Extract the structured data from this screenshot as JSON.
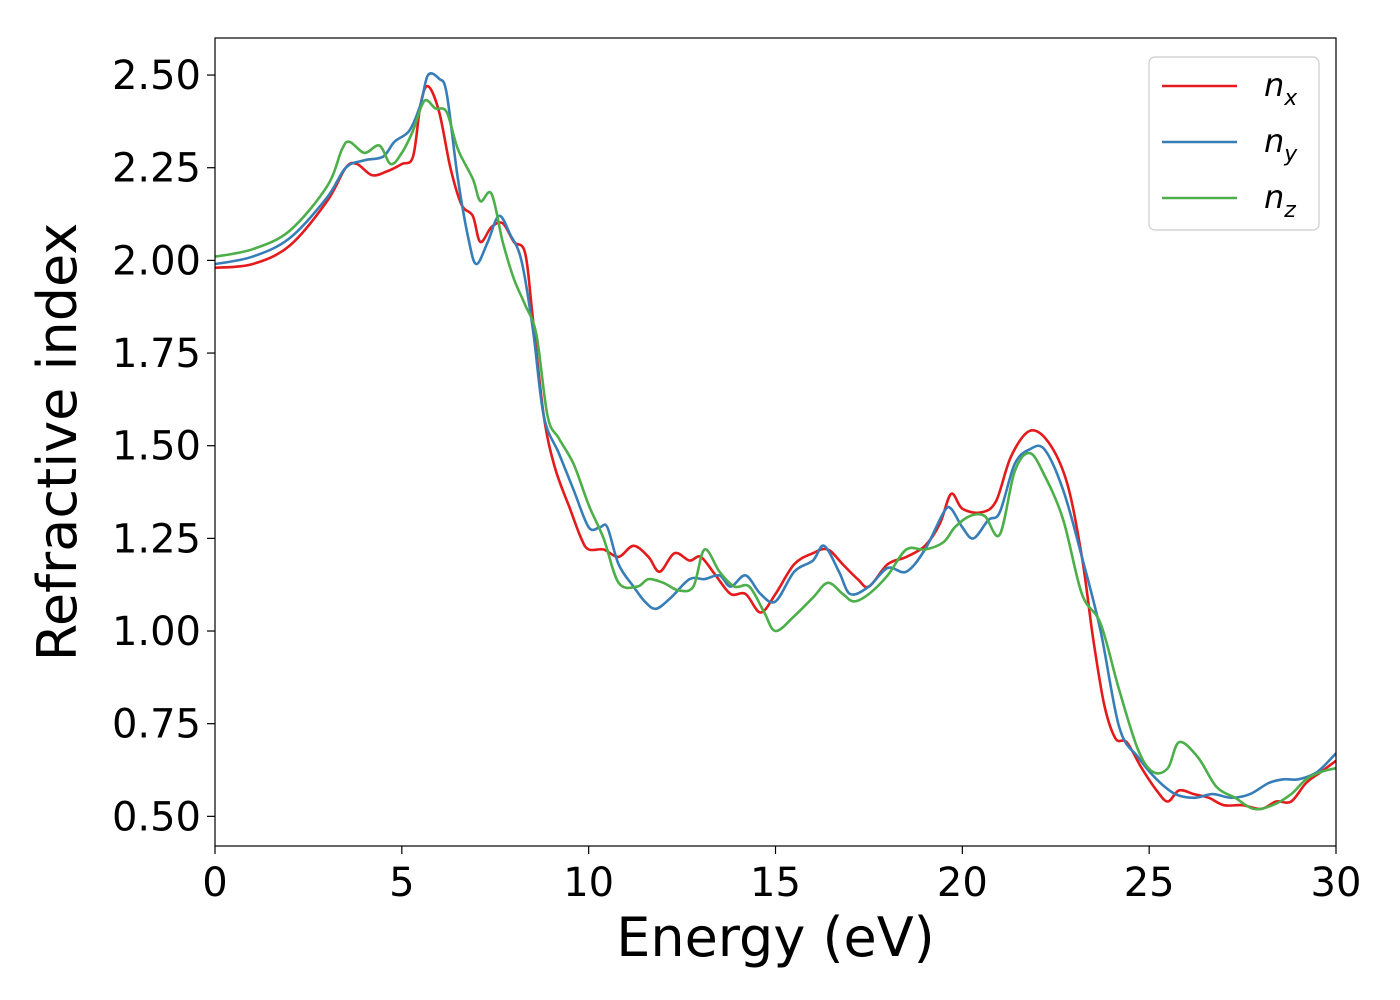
{
  "chart_data": {
    "type": "line",
    "title": "",
    "xlabel": "Energy (eV)",
    "ylabel": "Refractive index",
    "xlim": [
      0,
      30
    ],
    "ylim": [
      0.42,
      2.6
    ],
    "xticks": [
      0,
      5,
      10,
      15,
      20,
      25,
      30
    ],
    "xtick_labels": [
      "0",
      "5",
      "10",
      "15",
      "20",
      "25",
      "30"
    ],
    "yticks": [
      0.5,
      0.75,
      1.0,
      1.25,
      1.5,
      1.75,
      2.0,
      2.25,
      2.5
    ],
    "ytick_labels": [
      "0.50",
      "0.75",
      "1.00",
      "1.25",
      "1.50",
      "1.75",
      "2.00",
      "2.25",
      "2.50"
    ],
    "grid": false,
    "legend_position": "top-right",
    "series": [
      {
        "name": "n_x",
        "legend_base": "n",
        "legend_sub": "x",
        "color": "#e41a1c",
        "points": [
          [
            0,
            1.98
          ],
          [
            1,
            1.99
          ],
          [
            2,
            2.04
          ],
          [
            3,
            2.16
          ],
          [
            3.5,
            2.25
          ],
          [
            3.8,
            2.26
          ],
          [
            4.2,
            2.23
          ],
          [
            4.6,
            2.24
          ],
          [
            5.0,
            2.26
          ],
          [
            5.3,
            2.28
          ],
          [
            5.5,
            2.42
          ],
          [
            5.7,
            2.47
          ],
          [
            6.0,
            2.4
          ],
          [
            6.3,
            2.25
          ],
          [
            6.6,
            2.15
          ],
          [
            6.9,
            2.12
          ],
          [
            7.1,
            2.05
          ],
          [
            7.4,
            2.09
          ],
          [
            7.7,
            2.1
          ],
          [
            8.0,
            2.05
          ],
          [
            8.3,
            2.02
          ],
          [
            8.5,
            1.85
          ],
          [
            8.8,
            1.58
          ],
          [
            9.1,
            1.44
          ],
          [
            9.5,
            1.33
          ],
          [
            9.8,
            1.25
          ],
          [
            10.0,
            1.22
          ],
          [
            10.4,
            1.22
          ],
          [
            10.8,
            1.2
          ],
          [
            11.2,
            1.23
          ],
          [
            11.6,
            1.2
          ],
          [
            11.9,
            1.16
          ],
          [
            12.3,
            1.21
          ],
          [
            12.7,
            1.19
          ],
          [
            13.0,
            1.2
          ],
          [
            13.4,
            1.15
          ],
          [
            13.8,
            1.1
          ],
          [
            14.2,
            1.1
          ],
          [
            14.6,
            1.05
          ],
          [
            15.0,
            1.1
          ],
          [
            15.5,
            1.18
          ],
          [
            16.0,
            1.21
          ],
          [
            16.4,
            1.22
          ],
          [
            16.8,
            1.18
          ],
          [
            17.2,
            1.14
          ],
          [
            17.5,
            1.12
          ],
          [
            18.0,
            1.18
          ],
          [
            18.5,
            1.2
          ],
          [
            19.0,
            1.23
          ],
          [
            19.4,
            1.29
          ],
          [
            19.7,
            1.37
          ],
          [
            20.0,
            1.33
          ],
          [
            20.5,
            1.32
          ],
          [
            20.9,
            1.35
          ],
          [
            21.3,
            1.47
          ],
          [
            21.8,
            1.54
          ],
          [
            22.3,
            1.51
          ],
          [
            22.8,
            1.4
          ],
          [
            23.2,
            1.2
          ],
          [
            23.5,
            0.98
          ],
          [
            23.8,
            0.8
          ],
          [
            24.1,
            0.71
          ],
          [
            24.4,
            0.7
          ],
          [
            24.8,
            0.63
          ],
          [
            25.2,
            0.57
          ],
          [
            25.5,
            0.54
          ],
          [
            25.8,
            0.57
          ],
          [
            26.2,
            0.56
          ],
          [
            26.6,
            0.55
          ],
          [
            27.0,
            0.53
          ],
          [
            27.5,
            0.53
          ],
          [
            28.0,
            0.52
          ],
          [
            28.4,
            0.54
          ],
          [
            28.8,
            0.54
          ],
          [
            29.2,
            0.59
          ],
          [
            29.6,
            0.62
          ],
          [
            30,
            0.65
          ]
        ]
      },
      {
        "name": "n_y",
        "legend_base": "n",
        "legend_sub": "y",
        "color": "#377eb8",
        "points": [
          [
            0,
            1.99
          ],
          [
            1,
            2.01
          ],
          [
            2,
            2.06
          ],
          [
            3,
            2.17
          ],
          [
            3.5,
            2.25
          ],
          [
            4.0,
            2.27
          ],
          [
            4.5,
            2.28
          ],
          [
            4.8,
            2.32
          ],
          [
            5.2,
            2.35
          ],
          [
            5.5,
            2.42
          ],
          [
            5.7,
            2.5
          ],
          [
            6.0,
            2.49
          ],
          [
            6.2,
            2.45
          ],
          [
            6.5,
            2.22
          ],
          [
            6.8,
            2.05
          ],
          [
            7.0,
            1.99
          ],
          [
            7.3,
            2.05
          ],
          [
            7.6,
            2.12
          ],
          [
            7.9,
            2.07
          ],
          [
            8.2,
            2.0
          ],
          [
            8.5,
            1.82
          ],
          [
            8.8,
            1.58
          ],
          [
            9.2,
            1.48
          ],
          [
            9.6,
            1.38
          ],
          [
            10.0,
            1.28
          ],
          [
            10.3,
            1.28
          ],
          [
            10.5,
            1.28
          ],
          [
            10.8,
            1.18
          ],
          [
            11.2,
            1.12
          ],
          [
            11.5,
            1.08
          ],
          [
            11.8,
            1.06
          ],
          [
            12.2,
            1.09
          ],
          [
            12.7,
            1.14
          ],
          [
            13.1,
            1.14
          ],
          [
            13.5,
            1.15
          ],
          [
            13.8,
            1.12
          ],
          [
            14.2,
            1.15
          ],
          [
            14.6,
            1.1
          ],
          [
            15.0,
            1.08
          ],
          [
            15.5,
            1.16
          ],
          [
            16.0,
            1.19
          ],
          [
            16.3,
            1.23
          ],
          [
            16.7,
            1.16
          ],
          [
            17.0,
            1.1
          ],
          [
            17.5,
            1.12
          ],
          [
            18.0,
            1.17
          ],
          [
            18.5,
            1.16
          ],
          [
            19.0,
            1.22
          ],
          [
            19.5,
            1.32
          ],
          [
            19.7,
            1.33
          ],
          [
            20.0,
            1.28
          ],
          [
            20.3,
            1.25
          ],
          [
            20.7,
            1.3
          ],
          [
            21.0,
            1.32
          ],
          [
            21.4,
            1.45
          ],
          [
            21.8,
            1.49
          ],
          [
            22.2,
            1.49
          ],
          [
            22.7,
            1.38
          ],
          [
            23.2,
            1.2
          ],
          [
            23.7,
            1.0
          ],
          [
            24.2,
            0.74
          ],
          [
            24.7,
            0.66
          ],
          [
            25.2,
            0.6
          ],
          [
            25.7,
            0.56
          ],
          [
            26.2,
            0.55
          ],
          [
            26.7,
            0.56
          ],
          [
            27.2,
            0.55
          ],
          [
            27.7,
            0.56
          ],
          [
            28.2,
            0.59
          ],
          [
            28.6,
            0.6
          ],
          [
            29.0,
            0.6
          ],
          [
            29.5,
            0.62
          ],
          [
            30,
            0.67
          ]
        ]
      },
      {
        "name": "n_z",
        "legend_base": "n",
        "legend_sub": "z",
        "color": "#4daf4a",
        "points": [
          [
            0,
            2.01
          ],
          [
            1,
            2.03
          ],
          [
            2,
            2.08
          ],
          [
            3,
            2.2
          ],
          [
            3.4,
            2.3
          ],
          [
            3.6,
            2.32
          ],
          [
            4.0,
            2.29
          ],
          [
            4.4,
            2.31
          ],
          [
            4.7,
            2.26
          ],
          [
            5.0,
            2.29
          ],
          [
            5.3,
            2.35
          ],
          [
            5.6,
            2.43
          ],
          [
            5.9,
            2.41
          ],
          [
            6.2,
            2.4
          ],
          [
            6.5,
            2.3
          ],
          [
            6.9,
            2.22
          ],
          [
            7.1,
            2.16
          ],
          [
            7.4,
            2.18
          ],
          [
            7.7,
            2.05
          ],
          [
            8.0,
            1.95
          ],
          [
            8.3,
            1.88
          ],
          [
            8.6,
            1.8
          ],
          [
            8.9,
            1.58
          ],
          [
            9.2,
            1.52
          ],
          [
            9.6,
            1.45
          ],
          [
            10.0,
            1.34
          ],
          [
            10.4,
            1.25
          ],
          [
            10.8,
            1.13
          ],
          [
            11.3,
            1.12
          ],
          [
            11.6,
            1.14
          ],
          [
            12.0,
            1.13
          ],
          [
            12.4,
            1.11
          ],
          [
            12.8,
            1.12
          ],
          [
            13.1,
            1.22
          ],
          [
            13.5,
            1.16
          ],
          [
            13.9,
            1.12
          ],
          [
            14.3,
            1.12
          ],
          [
            14.7,
            1.05
          ],
          [
            15.0,
            1.0
          ],
          [
            15.5,
            1.04
          ],
          [
            16.0,
            1.09
          ],
          [
            16.4,
            1.13
          ],
          [
            16.8,
            1.1
          ],
          [
            17.1,
            1.08
          ],
          [
            17.5,
            1.1
          ],
          [
            18.0,
            1.15
          ],
          [
            18.5,
            1.22
          ],
          [
            19.0,
            1.22
          ],
          [
            19.5,
            1.24
          ],
          [
            19.8,
            1.28
          ],
          [
            20.2,
            1.31
          ],
          [
            20.6,
            1.31
          ],
          [
            21.0,
            1.26
          ],
          [
            21.4,
            1.43
          ],
          [
            21.8,
            1.48
          ],
          [
            22.2,
            1.42
          ],
          [
            22.7,
            1.3
          ],
          [
            23.2,
            1.1
          ],
          [
            23.7,
            1.02
          ],
          [
            24.2,
            0.84
          ],
          [
            24.7,
            0.68
          ],
          [
            25.1,
            0.62
          ],
          [
            25.5,
            0.63
          ],
          [
            25.8,
            0.7
          ],
          [
            26.3,
            0.66
          ],
          [
            26.8,
            0.58
          ],
          [
            27.3,
            0.55
          ],
          [
            27.8,
            0.52
          ],
          [
            28.3,
            0.53
          ],
          [
            28.8,
            0.56
          ],
          [
            29.2,
            0.6
          ],
          [
            29.6,
            0.62
          ],
          [
            30,
            0.63
          ]
        ]
      }
    ]
  }
}
